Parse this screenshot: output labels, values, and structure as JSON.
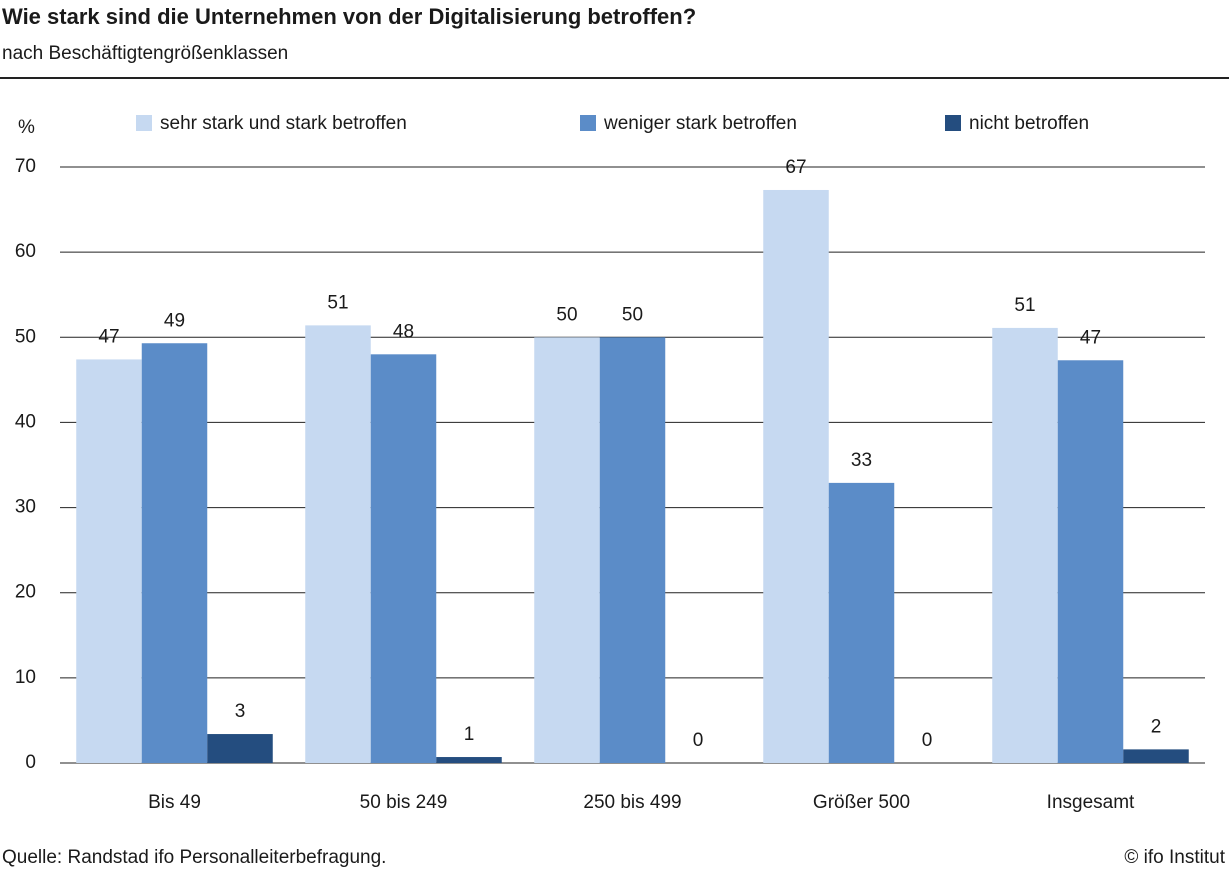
{
  "chart_data": {
    "type": "bar",
    "title": "Wie stark sind die Unternehmen von der Digitalisierung betroffen?",
    "subtitle": "nach Beschäftigtengrößenklassen",
    "y_label": "%",
    "categories": [
      "Bis 49",
      "50 bis 249",
      "250 bis 499",
      "Größer 500",
      "Insgesamt"
    ],
    "series": [
      {
        "name": "sehr stark und stark betroffen",
        "color": "#c6d9f1",
        "values": [
          47.4,
          51.4,
          50,
          67.3,
          51.1
        ],
        "value_labels": [
          "47",
          "51",
          "50",
          "67",
          "51"
        ]
      },
      {
        "name": "weniger stark betroffen",
        "color": "#5b8cc8",
        "values": [
          49.3,
          48,
          50,
          32.9,
          47.3
        ],
        "value_labels": [
          "49",
          "48",
          "50",
          "33",
          "47"
        ]
      },
      {
        "name": "nicht betroffen",
        "color": "#244d7f",
        "values": [
          3.4,
          0.7,
          0,
          0,
          1.6
        ],
        "value_labels": [
          "3",
          "1",
          "0",
          "0",
          "2"
        ]
      }
    ],
    "ylim": [
      0,
      70
    ],
    "yticks": [
      0,
      10,
      20,
      30,
      40,
      50,
      60,
      70
    ],
    "grid": true,
    "source": "Quelle: Randstad ifo Personalleiterbefragung.",
    "copyright": "© ifo Institut"
  }
}
